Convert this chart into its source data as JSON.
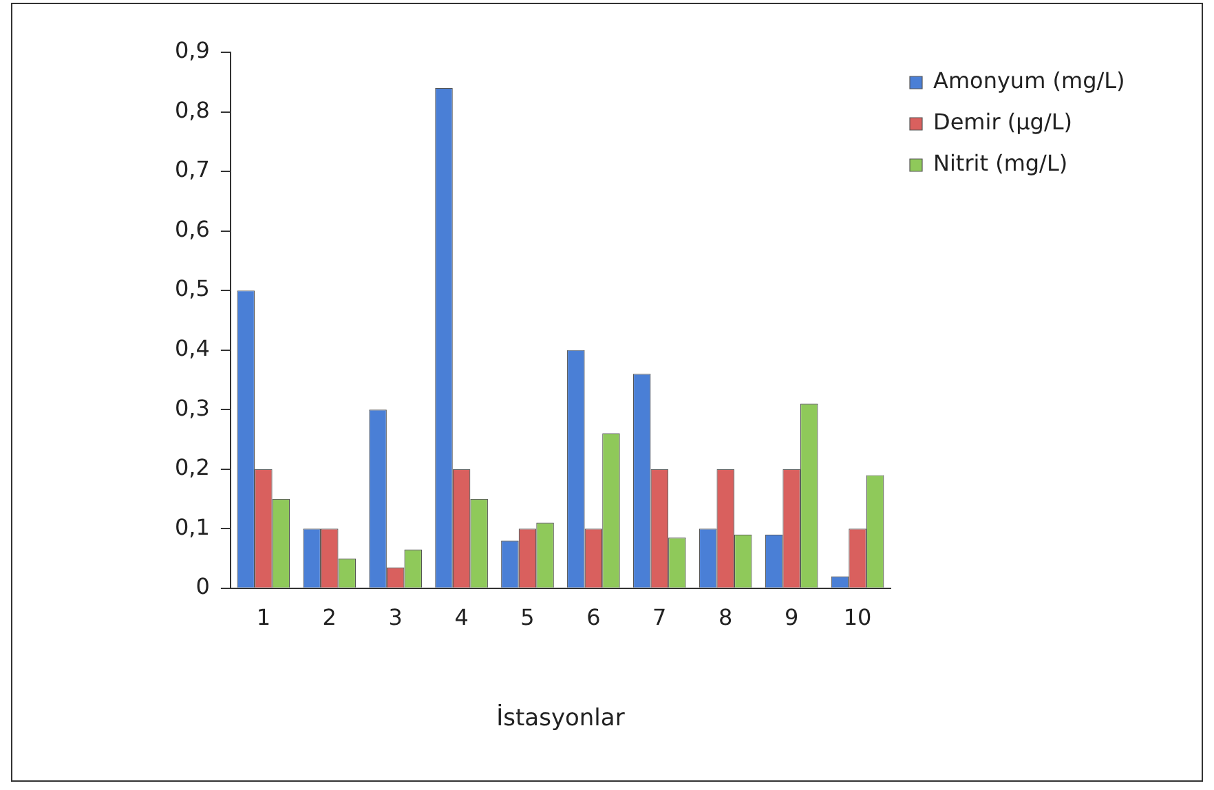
{
  "chart_data": {
    "type": "bar",
    "xlabel": "İstasyonlar",
    "categories": [
      "1",
      "2",
      "3",
      "4",
      "5",
      "6",
      "7",
      "8",
      "9",
      "10"
    ],
    "series": [
      {
        "name": "Amonyum (mg/L)",
        "color": "#4a7fd6",
        "values": [
          0.5,
          0.1,
          0.3,
          0.84,
          0.08,
          0.4,
          0.36,
          0.1,
          0.09,
          0.02
        ]
      },
      {
        "name": "Demir (µg/L)",
        "color": "#d9605e",
        "values": [
          0.2,
          0.1,
          0.035,
          0.2,
          0.1,
          0.1,
          0.2,
          0.2,
          0.2,
          0.1
        ]
      },
      {
        "name": "Nitrit (mg/L)",
        "color": "#8fc95a",
        "values": [
          0.15,
          0.05,
          0.065,
          0.15,
          0.11,
          0.26,
          0.085,
          0.09,
          0.31,
          0.19
        ]
      }
    ],
    "ylim": [
      0,
      0.9
    ],
    "yticks": [
      0,
      {
        "value": 0.1,
        "label": "0,1"
      },
      {
        "value": 0.2,
        "label": "0,2"
      },
      {
        "value": 0.3,
        "label": "0,3"
      },
      {
        "value": 0.4,
        "label": "0,4"
      },
      {
        "value": 0.5,
        "label": "0,5"
      },
      {
        "value": 0.6,
        "label": "0,6"
      },
      {
        "value": 0.7,
        "label": "0,7"
      },
      {
        "value": 0.8,
        "label": "0,8"
      },
      {
        "value": 0.9,
        "label": "0,9"
      }
    ],
    "grid": false,
    "legend": "top right"
  }
}
